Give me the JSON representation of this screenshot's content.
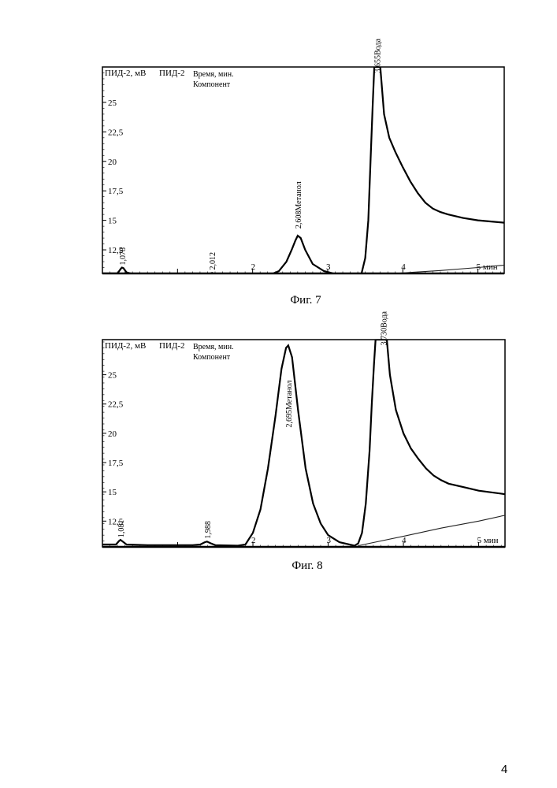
{
  "page_number": "4",
  "chart_data": [
    {
      "type": "line",
      "caption": "Фиг. 7",
      "ylabel": "ПИД-2, мВ",
      "detector": "ПИД-2",
      "header_line1": "Время, мин.",
      "header_line2": "Компонент",
      "x_unit": "мин",
      "xlim": [
        0.0,
        5.35
      ],
      "ylim": [
        10.5,
        28.0
      ],
      "y_ticks": [
        "12,5",
        "15",
        "17,5",
        "20",
        "22,5",
        "25"
      ],
      "y_tick_values": [
        12.5,
        15,
        17.5,
        20,
        22.5,
        25
      ],
      "x_tick_labels": [
        "2",
        "3",
        "4",
        "5 мин"
      ],
      "x_tick_values": [
        2,
        3,
        4,
        5
      ],
      "series": [
        {
          "points": [
            [
              0,
              10.5
            ],
            [
              0.2,
              10.5
            ],
            [
              0.245,
              10.9
            ],
            [
              0.26,
              11.0
            ],
            [
              0.28,
              10.95
            ],
            [
              0.32,
              10.6
            ],
            [
              0.4,
              10.45
            ],
            [
              1.0,
              10.3
            ],
            [
              1.3,
              10.3
            ],
            [
              1.39,
              10.3
            ],
            [
              1.44,
              10.5
            ],
            [
              1.46,
              10.55
            ],
            [
              1.49,
              10.45
            ],
            [
              1.54,
              10.3
            ],
            [
              2.0,
              10.25
            ],
            [
              2.2,
              10.3
            ],
            [
              2.35,
              10.7
            ],
            [
              2.45,
              11.5
            ],
            [
              2.52,
              12.5
            ],
            [
              2.57,
              13.3
            ],
            [
              2.6,
              13.7
            ],
            [
              2.64,
              13.5
            ],
            [
              2.7,
              12.5
            ],
            [
              2.8,
              11.3
            ],
            [
              2.95,
              10.7
            ],
            [
              3.1,
              10.45
            ],
            [
              3.35,
              10.35
            ],
            [
              3.45,
              10.5
            ],
            [
              3.5,
              11.8
            ],
            [
              3.54,
              15
            ],
            [
              3.57,
              20
            ],
            [
              3.6,
              25
            ],
            [
              3.62,
              28
            ],
            [
              3.65,
              28
            ],
            [
              3.68,
              28
            ],
            [
              3.7,
              28
            ],
            [
              3.75,
              24
            ],
            [
              3.82,
              22
            ],
            [
              3.9,
              20.8
            ],
            [
              4.0,
              19.5
            ],
            [
              4.1,
              18.3
            ],
            [
              4.2,
              17.3
            ],
            [
              4.3,
              16.5
            ],
            [
              4.4,
              16.0
            ],
            [
              4.5,
              15.7
            ],
            [
              4.6,
              15.5
            ],
            [
              4.8,
              15.2
            ],
            [
              5.0,
              15.0
            ],
            [
              5.35,
              14.8
            ]
          ]
        },
        {
          "points": [
            [
              3.45,
              10.35
            ],
            [
              4.0,
              10.55
            ],
            [
              4.5,
              10.75
            ],
            [
              5.0,
              11.0
            ],
            [
              5.35,
              11.2
            ]
          ]
        }
      ],
      "peak_labels": [
        {
          "text": "1,078",
          "x": 0.26,
          "y": 11.2
        },
        {
          "text": "2,012",
          "x": 1.46,
          "y": 10.8
        },
        {
          "text": "2,608Метанол",
          "x": 2.6,
          "y": 14.3
        },
        {
          "text": "3,655Вода",
          "x": 3.655,
          "y": 27.5
        }
      ]
    },
    {
      "type": "line",
      "caption": "Фиг. 8",
      "ylabel": "ПИД-2, мВ",
      "detector": "ПИД-2",
      "header_line1": "Время, мин.",
      "header_line2": "Компонент",
      "x_unit": "мин",
      "xlim": [
        0.0,
        5.35
      ],
      "ylim": [
        10.3,
        28.0
      ],
      "y_ticks": [
        "12,5",
        "15",
        "17,5",
        "20",
        "22,5",
        "25"
      ],
      "y_tick_values": [
        12.5,
        15,
        17.5,
        20,
        22.5,
        25
      ],
      "x_tick_labels": [
        "2",
        "3",
        "4",
        "5 мин"
      ],
      "x_tick_values": [
        2,
        3,
        4,
        5
      ],
      "series": [
        {
          "points": [
            [
              0,
              10.5
            ],
            [
              0.18,
              10.5
            ],
            [
              0.22,
              10.8
            ],
            [
              0.24,
              10.9
            ],
            [
              0.27,
              10.75
            ],
            [
              0.32,
              10.5
            ],
            [
              0.6,
              10.45
            ],
            [
              1.2,
              10.45
            ],
            [
              1.3,
              10.5
            ],
            [
              1.36,
              10.7
            ],
            [
              1.39,
              10.75
            ],
            [
              1.44,
              10.6
            ],
            [
              1.5,
              10.45
            ],
            [
              1.8,
              10.4
            ],
            [
              1.9,
              10.5
            ],
            [
              2.0,
              11.5
            ],
            [
              2.1,
              13.5
            ],
            [
              2.2,
              17.0
            ],
            [
              2.3,
              21.5
            ],
            [
              2.38,
              25.5
            ],
            [
              2.44,
              27.3
            ],
            [
              2.47,
              27.5
            ],
            [
              2.52,
              26.5
            ],
            [
              2.6,
              22.0
            ],
            [
              2.7,
              17.0
            ],
            [
              2.8,
              14.0
            ],
            [
              2.9,
              12.3
            ],
            [
              3.0,
              11.3
            ],
            [
              3.15,
              10.7
            ],
            [
              3.35,
              10.4
            ],
            [
              3.4,
              10.6
            ],
            [
              3.45,
              11.5
            ],
            [
              3.5,
              14.0
            ],
            [
              3.55,
              18.5
            ],
            [
              3.58,
              22.5
            ],
            [
              3.61,
              26.0
            ],
            [
              3.63,
              28.0
            ],
            [
              3.7,
              28
            ],
            [
              3.78,
              28
            ],
            [
              3.82,
              25
            ],
            [
              3.9,
              22.0
            ],
            [
              4.0,
              20.0
            ],
            [
              4.1,
              18.7
            ],
            [
              4.2,
              17.8
            ],
            [
              4.3,
              17.0
            ],
            [
              4.4,
              16.4
            ],
            [
              4.5,
              16.0
            ],
            [
              4.6,
              15.7
            ],
            [
              4.8,
              15.4
            ],
            [
              5.0,
              15.1
            ],
            [
              5.35,
              14.8
            ]
          ]
        },
        {
          "points": [
            [
              3.4,
              10.4
            ],
            [
              4.0,
              11.2
            ],
            [
              4.5,
              11.9
            ],
            [
              5.0,
              12.5
            ],
            [
              5.35,
              13.0
            ]
          ]
        }
      ],
      "peak_labels": [
        {
          "text": "1,081",
          "x": 0.24,
          "y": 11.1
        },
        {
          "text": "1,988",
          "x": 1.39,
          "y": 11.0
        },
        {
          "text": "2,695Метанол",
          "x": 2.47,
          "y": 20.5
        },
        {
          "text": "3,730Вода",
          "x": 3.73,
          "y": 27.5
        }
      ]
    }
  ]
}
